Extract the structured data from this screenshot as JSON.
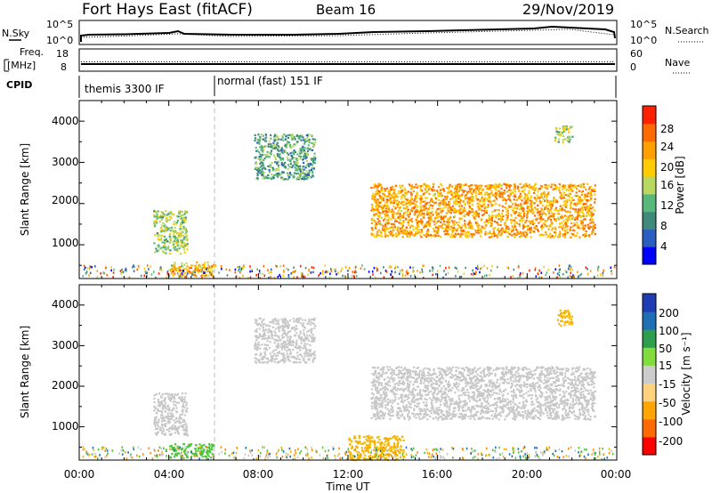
{
  "header": {
    "title": "Fort Hays East (fitACF)",
    "beam": "Beam 16",
    "date": "29/Nov/2019"
  },
  "summary_panels": {
    "nsky": {
      "left_label": "N.Sky",
      "right_label": "N.Search",
      "left_ticks": [
        "10^5",
        "10^0"
      ],
      "right_ticks": [
        "10^5",
        "10^0"
      ]
    },
    "freq": {
      "left_label_1": "Freq.",
      "left_label_2": "[MHz]",
      "right_label": "Nave",
      "left_ticks": [
        "18",
        "8"
      ],
      "right_ticks": [
        "60",
        "0"
      ]
    },
    "cpid": {
      "label": "CPID",
      "segments": [
        "themis 3300 IF",
        "normal (fast) 151 IF"
      ]
    }
  },
  "colors": {
    "power_scale": [
      "#0000ff",
      "#2a5fbf",
      "#3f8a7a",
      "#58b87a",
      "#b8d860",
      "#ffcc00",
      "#ffa000",
      "#ff6a00",
      "#ff2200"
    ],
    "velocity_scale": [
      "#ff0000",
      "#ff6a00",
      "#ffa500",
      "#ffd27f",
      "#cccccc",
      "#80dd3c",
      "#2e9e4e",
      "#1e6fb4",
      "#1e3cb4"
    ],
    "ground_scatter": "#bdbdbd"
  },
  "chart_data": [
    {
      "type": "heatmap",
      "name": "power",
      "ylabel": "Slant Range [km]",
      "ylim": [
        180,
        4500
      ],
      "yticks": [
        "1000",
        "2000",
        "3000",
        "4000"
      ],
      "xlim": [
        "00:00",
        "24:00"
      ],
      "colorbar_label": "Power [dB]",
      "colorbar_ticks": [
        "4",
        "8",
        "12",
        "16",
        "20",
        "24",
        "28"
      ],
      "colorbar_range": [
        0,
        30
      ],
      "regions": [
        {
          "t0": 3.3,
          "t1": 4.8,
          "r0": 800,
          "r1": 1850,
          "v": 14
        },
        {
          "t0": 4.0,
          "t1": 6.0,
          "r0": 250,
          "r1": 600,
          "v": 20
        },
        {
          "t0": 7.8,
          "t1": 10.5,
          "r0": 2600,
          "r1": 3700,
          "v": 10
        },
        {
          "t0": 13.0,
          "t1": 23.0,
          "r0": 1200,
          "r1": 2500,
          "v": 22
        },
        {
          "t0": 21.2,
          "t1": 22.0,
          "r0": 3500,
          "r1": 3900,
          "v": 14
        }
      ]
    },
    {
      "type": "heatmap",
      "name": "velocity",
      "xlabel": "Time UT",
      "ylabel": "Slant Range [km]",
      "ylim": [
        180,
        4500
      ],
      "yticks": [
        "1000",
        "2000",
        "3000",
        "4000"
      ],
      "xticks": [
        "00:00",
        "04:00",
        "08:00",
        "12:00",
        "16:00",
        "20:00",
        "00:00"
      ],
      "xlim": [
        "00:00",
        "24:00"
      ],
      "colorbar_label": "Velocity [m s⁻¹]",
      "colorbar_ticks": [
        "200",
        "100",
        "50",
        "15",
        "-15",
        "-50",
        "-100",
        "-200"
      ],
      "regions": [
        {
          "t0": 3.3,
          "t1": 4.8,
          "r0": 800,
          "r1": 1850,
          "v": 0
        },
        {
          "t0": 4.0,
          "t1": 6.0,
          "r0": 250,
          "r1": 600,
          "v": 30
        },
        {
          "t0": 7.8,
          "t1": 10.5,
          "r0": 2600,
          "r1": 3700,
          "v": 0
        },
        {
          "t0": 13.0,
          "t1": 23.0,
          "r0": 1200,
          "r1": 2500,
          "v": 0
        },
        {
          "t0": 12.0,
          "t1": 14.5,
          "r0": 200,
          "r1": 800,
          "v": -40
        },
        {
          "t0": 21.3,
          "t1": 22.0,
          "r0": 3500,
          "r1": 3900,
          "v": -30
        }
      ]
    }
  ]
}
